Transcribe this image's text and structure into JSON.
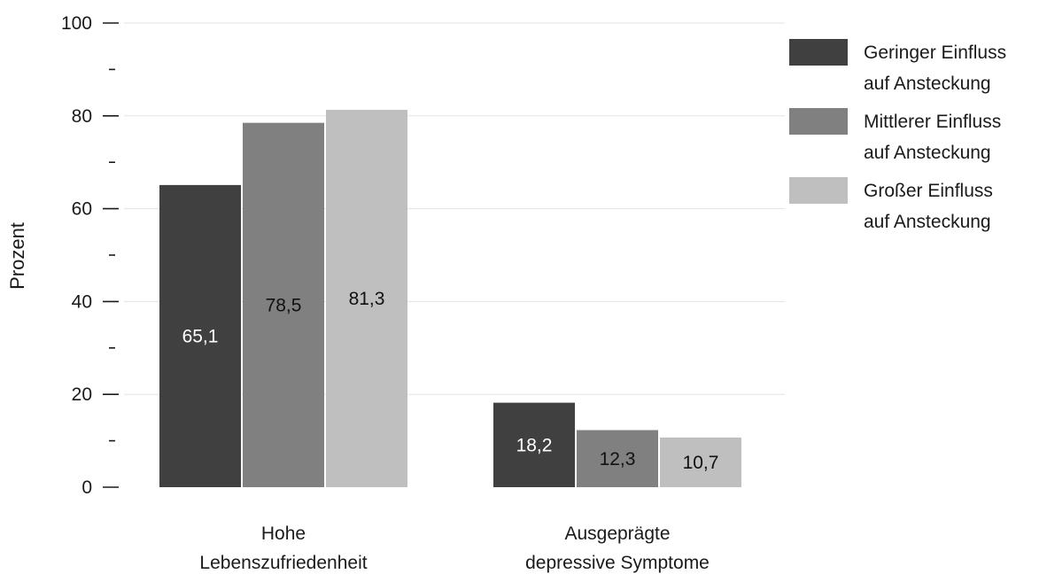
{
  "chart_data": {
    "type": "bar",
    "categories": [
      "Hohe\nLebenszufriedenheit",
      "Ausgeprägte\ndepressive Symptome"
    ],
    "series": [
      {
        "name": "Geringer Einfluss\nauf Ansteckung",
        "values": [
          65.1,
          18.2
        ],
        "labels": [
          "65,1",
          "18,2"
        ],
        "color": "#404040",
        "label_color": "#ffffff"
      },
      {
        "name": "Mittlerer Einfluss\nauf Ansteckung",
        "values": [
          78.5,
          12.3
        ],
        "labels": [
          "78,5",
          "12,3"
        ],
        "color": "#808080",
        "label_color": "#111111"
      },
      {
        "name": "Großer Einfluss\nauf Ansteckung",
        "values": [
          81.3,
          10.7
        ],
        "labels": [
          "81,3",
          "10,7"
        ],
        "color": "#bfbfbf",
        "label_color": "#111111"
      }
    ],
    "ylabel": "Prozent",
    "ylim": [
      0,
      100
    ],
    "yticks": [
      0,
      20,
      40,
      60,
      80,
      100
    ],
    "yminor_ticks": [
      10,
      30,
      50,
      70,
      90
    ],
    "minor_tick_label": "-",
    "grid": true,
    "legend": "right"
  }
}
